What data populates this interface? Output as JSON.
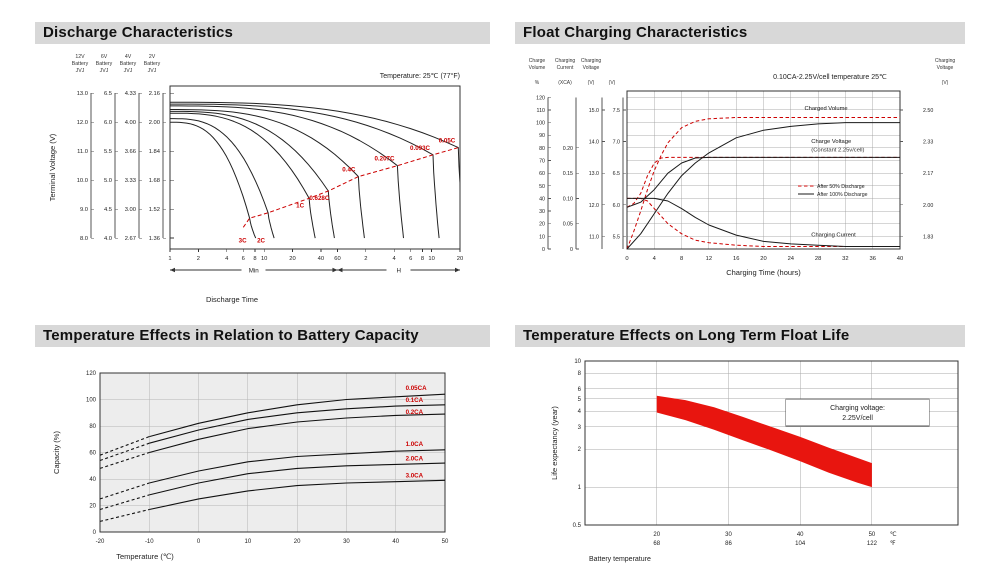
{
  "chart_data": [
    {
      "id": "discharge",
      "type": "line",
      "title": "Discharge Characteristics",
      "note": "Temperature: 25℃ (77°F)",
      "xlabel": "Discharge Time",
      "ylabel": "Terminal Voltage (V)",
      "x_segments": [
        {
          "label": "Min"
        },
        {
          "label": "H"
        }
      ],
      "x_ticks_min": [
        1,
        2,
        4,
        6,
        8,
        10,
        20,
        40,
        60
      ],
      "x_ticks_hours": [
        2,
        4,
        6,
        8,
        10,
        20
      ],
      "y_domain": [
        1.3,
        2.2
      ],
      "tick_values_2v": [
        2.16,
        2.0,
        1.84,
        1.68,
        1.52,
        1.36
      ],
      "y_axes": [
        {
          "header": [
            "12V",
            "Battery",
            "JVJ"
          ],
          "ticks": [
            "13.0",
            "12.0",
            "11.0",
            "10.0",
            "9.0",
            "8.0"
          ]
        },
        {
          "header": [
            "6V",
            "Battery",
            "JVJ"
          ],
          "ticks": [
            "6.5",
            "6.0",
            "5.5",
            "5.0",
            "4.5",
            "4.0"
          ]
        },
        {
          "header": [
            "4V",
            "Battery",
            "JVJ"
          ],
          "ticks": [
            "4.33",
            "4.00",
            "3.66",
            "3.33",
            "3.00",
            "2.67"
          ]
        },
        {
          "header": [
            "2V",
            "Battery",
            "JVJ"
          ],
          "ticks": [
            "2.16",
            "2.00",
            "1.84",
            "1.68",
            "1.52",
            "1.36"
          ]
        }
      ],
      "curves": [
        {
          "label": "3C",
          "t_end_min": 7,
          "v_start": 2.0,
          "v_knee": 1.47,
          "label_pos": "bottom"
        },
        {
          "label": "2C",
          "t_end_min": 11,
          "v_start": 2.02,
          "v_knee": 1.5,
          "label_pos": "bottom"
        },
        {
          "label": "1C",
          "t_end_min": 30,
          "v_start": 2.05,
          "v_knee": 1.58,
          "label_pos": "below"
        },
        {
          "label": "0.628C",
          "t_end_min": 48,
          "v_start": 2.06,
          "v_knee": 1.62,
          "label_pos": "below"
        },
        {
          "label": "0.4C",
          "t_end_min": 100,
          "v_start": 2.07,
          "v_knee": 1.7,
          "label_pos": "above"
        },
        {
          "label": "0.207C",
          "t_end_min": 260,
          "v_start": 2.09,
          "v_knee": 1.76,
          "label_pos": "above"
        },
        {
          "label": "0.093C",
          "t_end_min": 620,
          "v_start": 2.1,
          "v_knee": 1.82,
          "label_pos": "above"
        },
        {
          "label": "0.05C",
          "t_end_min": 1150,
          "v_start": 2.11,
          "v_knee": 1.86,
          "label_pos": "above"
        }
      ],
      "accent_color": "#cc0000"
    },
    {
      "id": "float-charging",
      "type": "line",
      "title": "Float Charging Characteristics",
      "note": "0.10CA-2.25V/cell  temperature 25℃",
      "xlabel": "Charging Time (hours)",
      "x_ticks": [
        0,
        4,
        8,
        12,
        16,
        20,
        24,
        28,
        32,
        36,
        40
      ],
      "left_axes": [
        {
          "header": [
            "Charge",
            "Volume"
          ],
          "unit": "%",
          "ticks": [
            120,
            110,
            100,
            90,
            80,
            70,
            60,
            50,
            40,
            30,
            20,
            10,
            0
          ]
        },
        {
          "header": [
            "Charging",
            "Current"
          ],
          "unit": "(XCA)",
          "ticks": [
            "0.20",
            "0.15",
            "0.10",
            "0.05",
            "0"
          ],
          "tick_pos": [
            80,
            60,
            40,
            20,
            0
          ]
        },
        {
          "header": [
            "Charging",
            "Voltage"
          ],
          "unit": "(V)",
          "ticks": [
            "15.0",
            "14.0",
            "13.0",
            "12.0",
            "11.0"
          ],
          "tick_pos": [
            110,
            85,
            60,
            35,
            10
          ]
        },
        {
          "header": [],
          "unit": "(V)",
          "ticks": [
            "7.5",
            "7.0",
            "6.5",
            "6.0",
            "5.5"
          ],
          "tick_pos": [
            110,
            85,
            60,
            35,
            10
          ]
        }
      ],
      "right_axis": {
        "header": [
          "Charging",
          "Voltage"
        ],
        "unit": "(V)",
        "ticks": [
          "2.50",
          "2.33",
          "2.17",
          "2.00",
          "1.83"
        ],
        "tick_pos": [
          110,
          85,
          60,
          35,
          10
        ]
      },
      "series": [
        {
          "name": "charged-volume-after-50",
          "style": "dashed",
          "color": "#cc0000",
          "points": [
            [
              0,
              0
            ],
            [
              1,
              14
            ],
            [
              2,
              30
            ],
            [
              3,
              47
            ],
            [
              4,
              62
            ],
            [
              5,
              74
            ],
            [
              6,
              84
            ],
            [
              8,
              96
            ],
            [
              10,
              101
            ],
            [
              12,
              103
            ],
            [
              16,
              104
            ],
            [
              20,
              104
            ],
            [
              40,
              104
            ]
          ]
        },
        {
          "name": "charged-volume-after-100",
          "style": "solid",
          "color": "#1a1a1a",
          "points": [
            [
              0,
              0
            ],
            [
              2,
              12
            ],
            [
              4,
              28
            ],
            [
              6,
              44
            ],
            [
              8,
              58
            ],
            [
              10,
              68
            ],
            [
              12,
              76
            ],
            [
              16,
              88
            ],
            [
              20,
              94
            ],
            [
              24,
              97
            ],
            [
              28,
              99
            ],
            [
              32,
              100
            ],
            [
              36,
              100
            ],
            [
              40,
              100
            ]
          ]
        },
        {
          "name": "charge-voltage-after-50",
          "style": "dashed",
          "color": "#cc0000",
          "points": [
            [
              0,
              33
            ],
            [
              1,
              36
            ],
            [
              2,
              44
            ],
            [
              3,
              58
            ],
            [
              4,
              68
            ],
            [
              5,
              72
            ],
            [
              6,
              72.5
            ],
            [
              40,
              72.5
            ]
          ]
        },
        {
          "name": "charge-voltage-after-100",
          "style": "solid",
          "color": "#1a1a1a",
          "points": [
            [
              0,
              33
            ],
            [
              2,
              37
            ],
            [
              4,
              47
            ],
            [
              6,
              60
            ],
            [
              8,
              68
            ],
            [
              10,
              72
            ],
            [
              12,
              72.5
            ],
            [
              40,
              72.5
            ]
          ]
        },
        {
          "name": "charging-current-after-50",
          "style": "dashed",
          "color": "#cc0000",
          "points": [
            [
              0,
              40
            ],
            [
              2,
              40
            ],
            [
              3,
              38
            ],
            [
              4,
              32
            ],
            [
              5,
              26
            ],
            [
              6,
              20
            ],
            [
              8,
              12
            ],
            [
              10,
              7
            ],
            [
              12,
              5
            ],
            [
              16,
              3
            ],
            [
              20,
              2
            ],
            [
              40,
              2
            ]
          ]
        },
        {
          "name": "charging-current-after-100",
          "style": "solid",
          "color": "#1a1a1a",
          "points": [
            [
              0,
              40
            ],
            [
              4,
              40
            ],
            [
              6,
              38
            ],
            [
              8,
              32
            ],
            [
              10,
              25
            ],
            [
              12,
              19
            ],
            [
              16,
              11
            ],
            [
              20,
              6
            ],
            [
              24,
              4
            ],
            [
              28,
              3
            ],
            [
              32,
              2
            ],
            [
              40,
              2
            ]
          ]
        }
      ],
      "labels": [
        {
          "text": "Charged Volume",
          "x": 26,
          "y": 110,
          "color": "#111111"
        },
        {
          "text": "Charge Voltage",
          "x": 27,
          "y": 84,
          "color": "#111111"
        },
        {
          "text": "(Constant 2.25v/cell)",
          "x": 27,
          "y": 77,
          "color": "#333333"
        },
        {
          "text": "Charging Current",
          "x": 27,
          "y": 10,
          "color": "#111111"
        }
      ],
      "legend": [
        {
          "text": "After  50% Discharge",
          "style": "dashed",
          "color": "#cc0000"
        },
        {
          "text": "After 100% Discharge",
          "style": "solid",
          "color": "#1a1a1a"
        }
      ]
    },
    {
      "id": "temp-capacity",
      "type": "line",
      "title": "Temperature Effects in Relation to Battery Capacity",
      "xlabel": "Temperature (℃)",
      "ylabel": "Capacity (%)",
      "x_ticks": [
        -20,
        -10,
        0,
        10,
        20,
        30,
        40,
        50
      ],
      "y_ticks": [
        0,
        20,
        40,
        60,
        80,
        100,
        120
      ],
      "dash_until_c": -10,
      "label_color": "#cc0000",
      "series": [
        {
          "label": "0.05CA",
          "label_y": 107,
          "points": [
            [
              -20,
              58
            ],
            [
              -10,
              72
            ],
            [
              0,
              82
            ],
            [
              10,
              90
            ],
            [
              20,
              96
            ],
            [
              30,
              100
            ],
            [
              40,
              102
            ],
            [
              50,
              104
            ]
          ]
        },
        {
          "label": "0.1CA",
          "label_y": 98,
          "points": [
            [
              -20,
              54
            ],
            [
              -10,
              67
            ],
            [
              0,
              77
            ],
            [
              10,
              85
            ],
            [
              20,
              90
            ],
            [
              30,
              93
            ],
            [
              40,
              95
            ],
            [
              50,
              96
            ]
          ]
        },
        {
          "label": "0.2CA",
          "label_y": 89,
          "points": [
            [
              -20,
              48
            ],
            [
              -10,
              60
            ],
            [
              0,
              70
            ],
            [
              10,
              78
            ],
            [
              20,
              83
            ],
            [
              30,
              86
            ],
            [
              40,
              88
            ],
            [
              50,
              89
            ]
          ]
        },
        {
          "label": "1.0CA",
          "label_y": 65,
          "points": [
            [
              -20,
              25
            ],
            [
              -10,
              37
            ],
            [
              0,
              46
            ],
            [
              10,
              53
            ],
            [
              20,
              57
            ],
            [
              30,
              59
            ],
            [
              40,
              61
            ],
            [
              50,
              62
            ]
          ]
        },
        {
          "label": "2.0CA",
          "label_y": 54,
          "points": [
            [
              -20,
              17
            ],
            [
              -10,
              28
            ],
            [
              0,
              37
            ],
            [
              10,
              44
            ],
            [
              20,
              48
            ],
            [
              30,
              50
            ],
            [
              40,
              51
            ],
            [
              50,
              52
            ]
          ]
        },
        {
          "label": "3.0CA",
          "label_y": 41,
          "points": [
            [
              -20,
              8
            ],
            [
              -10,
              17
            ],
            [
              0,
              25
            ],
            [
              10,
              31
            ],
            [
              20,
              35
            ],
            [
              30,
              37
            ],
            [
              40,
              38
            ],
            [
              50,
              39
            ]
          ]
        }
      ]
    },
    {
      "id": "float-life",
      "type": "band",
      "title": "Temperature Effects on Long Term Float Life",
      "xlabel": "Battery temperature",
      "ylabel": "Life expectancy (year)",
      "annotation": [
        "Charging voltage:",
        "2.25V/cell"
      ],
      "x_domain": [
        10,
        62
      ],
      "x_ticks": [
        {
          "c": "20",
          "f": "68"
        },
        {
          "c": "30",
          "f": "86"
        },
        {
          "c": "40",
          "f": "104"
        },
        {
          "c": "50",
          "f": "122"
        }
      ],
      "x_unit_c": "℃",
      "x_unit_f": "℉",
      "y_domain": [
        0.5,
        10
      ],
      "y_ticks": [
        10,
        8,
        6,
        5,
        4,
        3,
        2,
        1,
        0.5
      ],
      "band_color": "#e8150f",
      "band_top": [
        [
          20,
          5.3
        ],
        [
          24,
          4.9
        ],
        [
          28,
          4.3
        ],
        [
          32,
          3.6
        ],
        [
          36,
          3.0
        ],
        [
          40,
          2.5
        ],
        [
          44,
          2.05
        ],
        [
          48,
          1.7
        ],
        [
          50,
          1.55
        ]
      ],
      "band_bottom": [
        [
          20,
          3.9
        ],
        [
          24,
          3.4
        ],
        [
          28,
          2.85
        ],
        [
          32,
          2.35
        ],
        [
          36,
          1.95
        ],
        [
          40,
          1.6
        ],
        [
          44,
          1.3
        ],
        [
          48,
          1.08
        ],
        [
          50,
          1.0
        ]
      ]
    }
  ]
}
